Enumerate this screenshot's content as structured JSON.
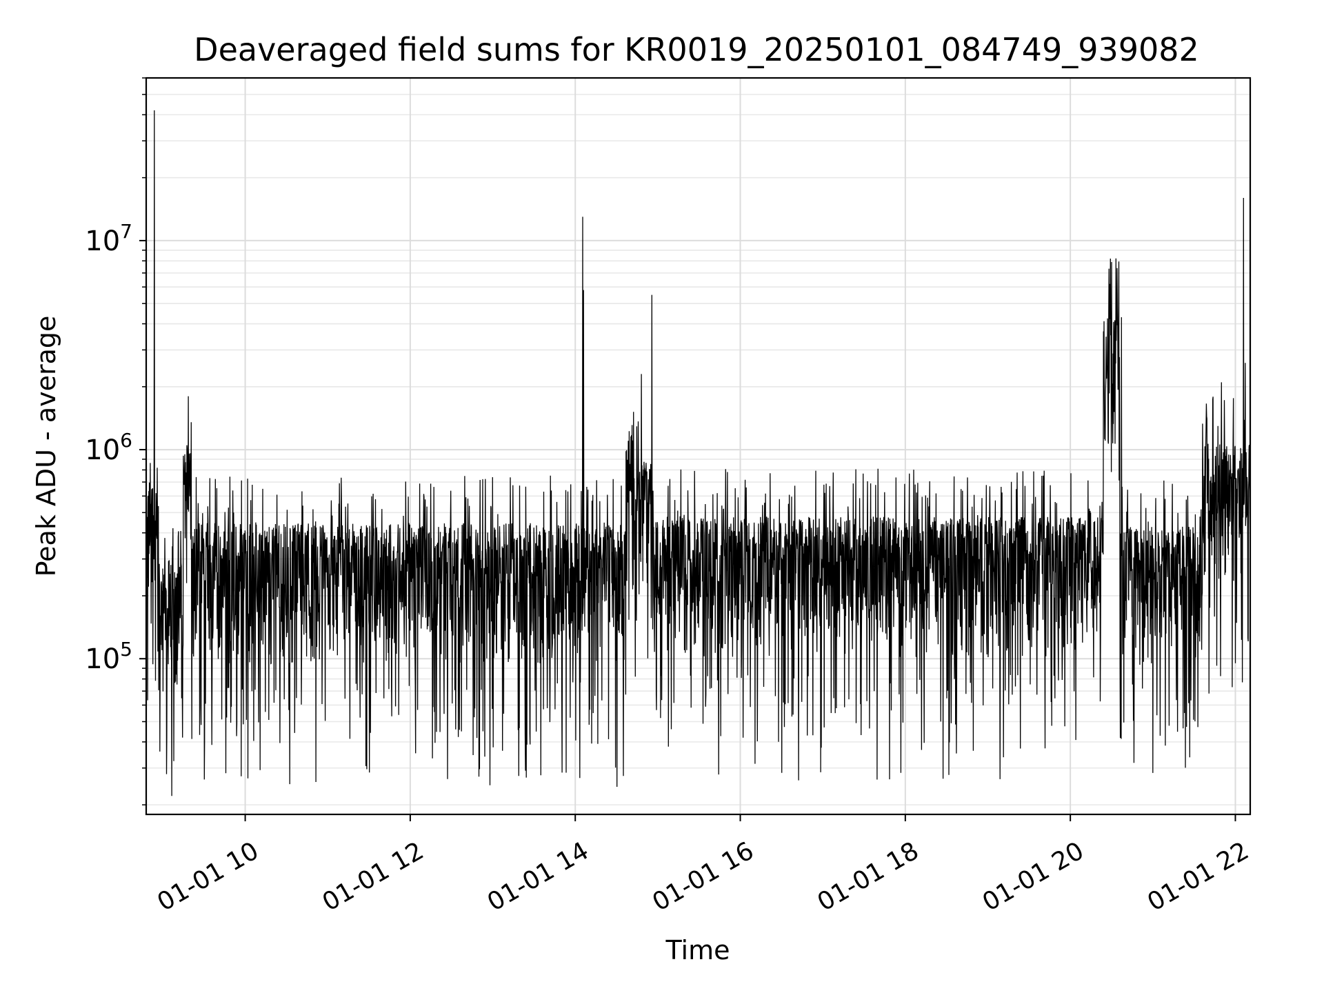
{
  "chart_data": {
    "type": "line",
    "title": "Deaveraged field sums for KR0019_20250101_084749_939082",
    "xlabel": "Time",
    "ylabel": "Peak ADU - average",
    "yscale": "log",
    "xlim": [
      "2025-01-01 08:48",
      "2025-01-01 22:11"
    ],
    "ylim": [
      18000,
      60000000
    ],
    "grid": true,
    "x_ticks": [
      "01-01 10",
      "01-01 12",
      "01-01 14",
      "01-01 16",
      "01-01 18",
      "01-01 20",
      "01-01 22"
    ],
    "x_tick_hours": [
      10,
      12,
      14,
      16,
      18,
      20,
      22
    ],
    "y_ticks": [
      {
        "value": 100000,
        "base": "10",
        "exp": "5"
      },
      {
        "value": 1000000,
        "base": "10",
        "exp": "6"
      },
      {
        "value": 10000000,
        "base": "10",
        "exp": "7"
      }
    ],
    "line_color": "#000000",
    "x_start_hour": 8.8,
    "x_end_hour": 22.18,
    "baseline_segments": [
      {
        "t0": 8.8,
        "t1": 8.95,
        "level": 400000
      },
      {
        "t0": 8.95,
        "t1": 9.25,
        "level": 180000
      },
      {
        "t0": 9.25,
        "t1": 9.35,
        "level": 650000
      },
      {
        "t0": 9.35,
        "t1": 14.6,
        "level": 270000
      },
      {
        "t0": 14.6,
        "t1": 14.92,
        "level": 550000
      },
      {
        "t0": 14.92,
        "t1": 20.4,
        "level": 290000
      },
      {
        "t0": 20.4,
        "t1": 20.6,
        "level": 3000000
      },
      {
        "t0": 20.6,
        "t1": 21.6,
        "level": 260000
      },
      {
        "t0": 21.6,
        "t1": 22.18,
        "level": 650000
      }
    ],
    "spikes": [
      {
        "t": 8.9,
        "value": 42000000
      },
      {
        "t": 14.09,
        "value": 13000000
      },
      {
        "t": 14.1,
        "value": 5800000
      },
      {
        "t": 14.93,
        "value": 5500000
      },
      {
        "t": 14.8,
        "value": 2300000
      },
      {
        "t": 20.48,
        "value": 6200000
      },
      {
        "t": 20.62,
        "value": 4300000
      },
      {
        "t": 22.1,
        "value": 16000000
      },
      {
        "t": 22.12,
        "value": 2600000
      },
      {
        "t": 21.83,
        "value": 2100000
      },
      {
        "t": 9.27,
        "value": 950000
      }
    ]
  }
}
